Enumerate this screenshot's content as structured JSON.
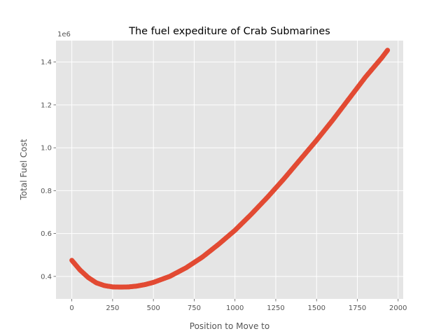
{
  "chart_data": {
    "type": "scatter",
    "title": "The fuel expediture of Crab Submarines",
    "xlabel": "Position to Move to",
    "ylabel": "Total Fuel Cost",
    "y_offset_label": "1e6",
    "xlim": [
      -97,
      2031
    ],
    "ylim": [
      0.295,
      1.5
    ],
    "x_ticks": [
      0,
      250,
      500,
      750,
      1000,
      1250,
      1500,
      1750,
      2000
    ],
    "x_tick_labels": [
      "0",
      "250",
      "500",
      "750",
      "1000",
      "1250",
      "1500",
      "1750",
      "2000"
    ],
    "y_ticks": [
      0.4,
      0.6,
      0.8,
      1.0,
      1.2,
      1.4
    ],
    "y_tick_labels": [
      "0.4",
      "0.6",
      "0.8",
      "1.0",
      "1.2",
      "1.4"
    ],
    "grid": true,
    "marker_color": "#E24A33",
    "background_color": "#E5E5E5",
    "series": [
      {
        "x": [
          0,
          50,
          100,
          150,
          200,
          250,
          300,
          350,
          400,
          450,
          500,
          600,
          700,
          800,
          900,
          1000,
          1100,
          1200,
          1300,
          1400,
          1500,
          1600,
          1700,
          1800,
          1900,
          1935
        ],
        "y": [
          0.475,
          0.43,
          0.395,
          0.37,
          0.357,
          0.351,
          0.35,
          0.351,
          0.355,
          0.362,
          0.372,
          0.4,
          0.44,
          0.49,
          0.55,
          0.615,
          0.69,
          0.77,
          0.855,
          0.945,
          1.035,
          1.13,
          1.23,
          1.33,
          1.42,
          1.455
        ]
      }
    ]
  }
}
